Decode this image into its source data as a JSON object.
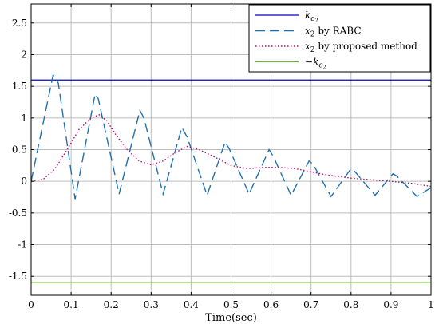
{
  "chart_data": {
    "type": "line",
    "xlabel": "Time(sec)",
    "ylabel": "",
    "xlim": [
      0,
      1
    ],
    "ylim": [
      -1.8,
      2.8
    ],
    "grid": true,
    "legend_position": "top-right",
    "x_ticks": [
      0,
      0.1,
      0.2,
      0.3,
      0.4,
      0.5,
      0.6,
      0.7,
      0.8,
      0.9,
      1
    ],
    "x_tick_labels": [
      "0",
      "0.1",
      "0.2",
      "0.3",
      "0.4",
      "0.5",
      "0.6",
      "0.7",
      "0.8",
      "0.9",
      "1"
    ],
    "y_ticks": [
      -1.5,
      -1,
      -0.5,
      0,
      0.5,
      1,
      1.5,
      2,
      2.5
    ],
    "y_tick_labels": [
      "-1.5",
      "-1",
      "-0.5",
      "0",
      "0.5",
      "1",
      "1.5",
      "2",
      "2.5"
    ],
    "series": [
      {
        "legend": {
          "base": "k",
          "sub": "c",
          "subsub": "2"
        },
        "color": "#0000cc",
        "style": "solid",
        "points": [
          [
            0,
            1.6
          ],
          [
            1,
            1.6
          ]
        ]
      },
      {
        "legend": {
          "var": "x",
          "sub": "2",
          "text": " by RABC"
        },
        "color": "#1f6fb0",
        "style": "dashed",
        "points": [
          [
            0,
            0
          ],
          [
            0.055,
            1.68
          ],
          [
            0.068,
            1.55
          ],
          [
            0.11,
            -0.28
          ],
          [
            0.16,
            1.38
          ],
          [
            0.168,
            1.3
          ],
          [
            0.22,
            -0.2
          ],
          [
            0.272,
            1.12
          ],
          [
            0.282,
            1.0
          ],
          [
            0.33,
            -0.2
          ],
          [
            0.377,
            0.85
          ],
          [
            0.39,
            0.7
          ],
          [
            0.44,
            -0.22
          ],
          [
            0.485,
            0.62
          ],
          [
            0.495,
            0.52
          ],
          [
            0.545,
            -0.2
          ],
          [
            0.595,
            0.5
          ],
          [
            0.605,
            0.4
          ],
          [
            0.65,
            -0.22
          ],
          [
            0.695,
            0.32
          ],
          [
            0.705,
            0.27
          ],
          [
            0.75,
            -0.24
          ],
          [
            0.8,
            0.2
          ],
          [
            0.81,
            0.15
          ],
          [
            0.86,
            -0.22
          ],
          [
            0.905,
            0.12
          ],
          [
            0.915,
            0.08
          ],
          [
            0.965,
            -0.24
          ],
          [
            1.0,
            -0.1
          ]
        ]
      },
      {
        "legend": {
          "var": "x",
          "sub": "2",
          "text": " by proposed method"
        },
        "color": "#b0106a",
        "style": "dotted",
        "points": [
          [
            0,
            0
          ],
          [
            0.03,
            0.03
          ],
          [
            0.06,
            0.2
          ],
          [
            0.09,
            0.5
          ],
          [
            0.12,
            0.82
          ],
          [
            0.15,
            1.0
          ],
          [
            0.17,
            1.05
          ],
          [
            0.19,
            0.95
          ],
          [
            0.21,
            0.75
          ],
          [
            0.24,
            0.5
          ],
          [
            0.27,
            0.32
          ],
          [
            0.3,
            0.26
          ],
          [
            0.33,
            0.32
          ],
          [
            0.36,
            0.45
          ],
          [
            0.39,
            0.55
          ],
          [
            0.42,
            0.5
          ],
          [
            0.46,
            0.38
          ],
          [
            0.5,
            0.25
          ],
          [
            0.54,
            0.2
          ],
          [
            0.58,
            0.22
          ],
          [
            0.62,
            0.22
          ],
          [
            0.66,
            0.2
          ],
          [
            0.7,
            0.15
          ],
          [
            0.74,
            0.1
          ],
          [
            0.8,
            0.05
          ],
          [
            0.86,
            0.02
          ],
          [
            0.9,
            0.0
          ],
          [
            0.95,
            -0.03
          ],
          [
            1.0,
            -0.08
          ]
        ]
      },
      {
        "legend": {
          "prefix": "−",
          "base": "k",
          "sub": "c",
          "subsub": "2"
        },
        "color": "#77b830",
        "style": "solid",
        "points": [
          [
            0,
            -1.6
          ],
          [
            1,
            -1.6
          ]
        ]
      }
    ]
  }
}
